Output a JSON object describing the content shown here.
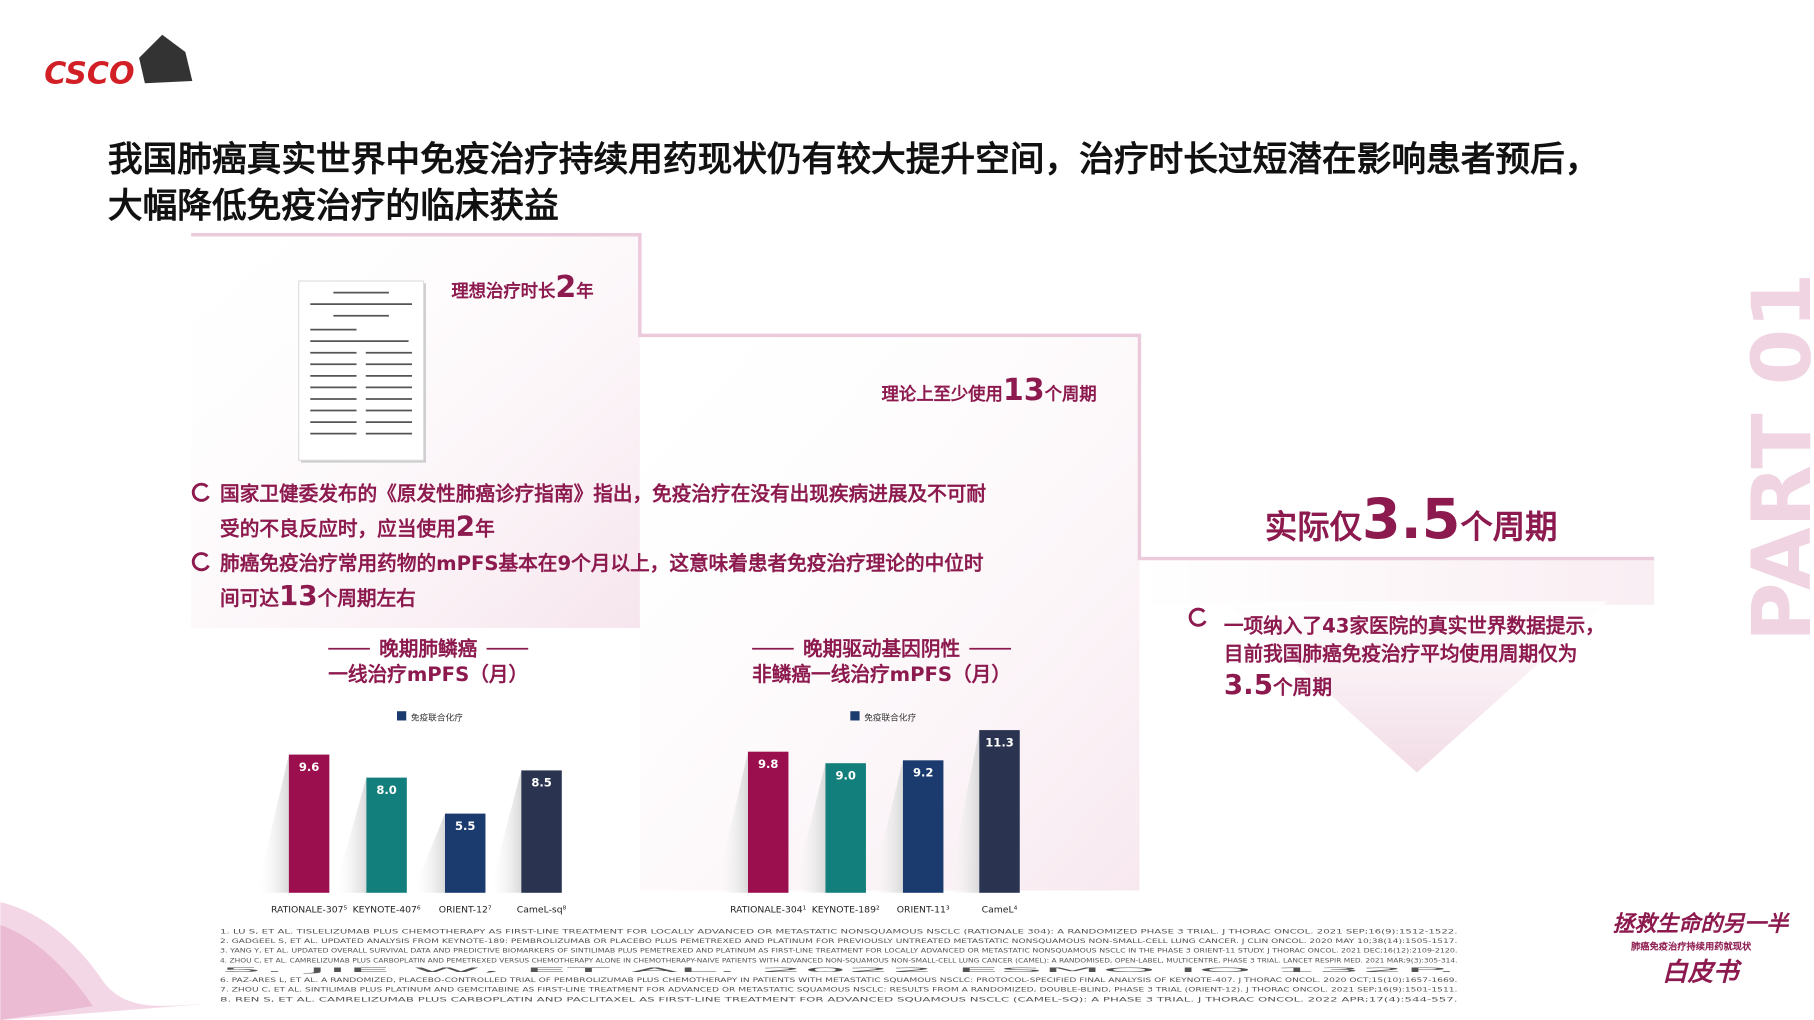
{
  "logo": "CSCO",
  "title": [
    "我国肺癌真实世界中免疫治疗持续用药现状仍有较大提升空间，治疗时长过短潜在影响患者预后，",
    "大幅降低免疫治疗的临床获益"
  ],
  "callout_ideal": {
    "text": "理想治疗时长",
    "number": "2",
    "unit": "年"
  },
  "callout_theory": {
    "text": "理论上至少使用",
    "number": "13",
    "unit": "个周期"
  },
  "bullets": [
    {
      "lines": [
        "国家卫健委发布的《原发性肺癌诊疗指南》指出，免疫治疗在没有出现疾病进展及不可耐",
        "受的不良反应时，应当使用"
      ],
      "number": "2",
      "unit": "年"
    },
    {
      "lines": [
        "肺癌免疫治疗常用药物的mPFS基本在9个月以上，这意味着患者免疫治疗理论的中位时",
        "间可达"
      ],
      "number": "13",
      "unit": "个周期左右"
    }
  ],
  "actual": {
    "text": "实际仅",
    "number": "3.5",
    "unit": "个周期"
  },
  "right_note": {
    "lines": [
      "一项纳入了43家医院的真实世界数据提示，",
      "目前我国肺癌免疫治疗平均使用周期仅为"
    ],
    "number": "3.5",
    "unit": "个周期"
  },
  "part": "PART 01",
  "chart_data": [
    {
      "type": "bar",
      "title": [
        "晚期肺鳞癌",
        "一线治疗mPFS（月）"
      ],
      "categories": [
        "RATIONALE-307⁵",
        "KEYNOTE-407⁶",
        "ORIENT-12⁷",
        "CameL-sq⁸"
      ],
      "series": [
        {
          "name": "免疫联合化疗",
          "values": [
            9.6,
            8,
            5.5,
            8.5
          ],
          "value_labels": [
            "9.6",
            "8.0",
            "5.5",
            "8.5"
          ]
        }
      ],
      "colors": [
        "#9b0f4f",
        "#137f7c",
        "#1b3a6e",
        "#2a3450"
      ],
      "ylim": [
        0,
        12
      ]
    },
    {
      "type": "bar",
      "title": [
        "晚期驱动基因阴性",
        "非鳞癌一线治疗mPFS（月）"
      ],
      "categories": [
        "RATIONALE-304¹",
        "KEYNOTE-189²",
        "ORIENT-11³",
        "CameL⁴"
      ],
      "series": [
        {
          "name": "免疫联合化疗",
          "values": [
            9.8,
            9,
            9.2,
            11.3
          ],
          "value_labels": [
            "9.8",
            "9.0",
            "9.2",
            "11.3"
          ]
        }
      ],
      "colors": [
        "#9b0f4f",
        "#137f7c",
        "#1b3a6e",
        "#2a3450"
      ],
      "ylim": [
        0,
        12
      ]
    }
  ],
  "references": [
    "1. LU S, ET AL. TISLELIZUMAB PLUS CHEMOTHERAPY AS FIRST-LINE TREATMENT FOR LOCALLY ADVANCED OR METASTATIC NONSQUAMOUS NSCLC (RATIONALE 304): A RANDOMIZED PHASE 3 TRIAL. J THORAC ONCOL. 2021 SEP;16(9):1512-1522.",
    "2. GADGEEL S, ET AL. UPDATED ANALYSIS FROM KEYNOTE-189: PEMBROLIZUMAB OR PLACEBO PLUS PEMETREXED AND PLATINUM FOR PREVIOUSLY UNTREATED METASTATIC NONSQUAMOUS NON-SMALL-CELL LUNG CANCER. J CLIN ONCOL. 2020 MAY 10;38(14):1505-1517.",
    "3. YANG Y, ET AL. UPDATED OVERALL SURVIVAL DATA AND PREDICTIVE BIOMARKERS OF SINTILIMAB PLUS PEMETREXED AND PLATINUM AS FIRST-LINE TREATMENT FOR LOCALLY ADVANCED OR METASTATIC NONSQUAMOUS NSCLC IN THE PHASE 3 ORIENT-11 STUDY. J THORAC ONCOL. 2021 DEC;16(12):2109-2120.",
    "4. ZHOU C, ET AL. CAMRELIZUMAB PLUS CARBOPLATIN AND PEMETREXED VERSUS CHEMOTHERAPY ALONE IN CHEMOTHERAPY-NAIVE PATIENTS WITH ADVANCED NON-SQUAMOUS NON-SMALL-CELL LUNG CANCER (CAMEL): A RANDOMISED, OPEN-LABEL, MULTICENTRE, PHASE 3 TRIAL. LANCET RESPIR MED. 2021 MAR;9(3):305-314.",
    "5. JIE W, ET AL. 2022 ESMO IO 132P.",
    "6. PAZ-ARES L, ET AL. A RANDOMIZED, PLACEBO-CONTROLLED TRIAL OF PEMBROLIZUMAB PLUS CHEMOTHERAPY IN PATIENTS WITH METASTATIC SQUAMOUS NSCLC: PROTOCOL-SPECIFIED FINAL ANALYSIS OF KEYNOTE-407. J THORAC ONCOL. 2020 OCT;15(10):1657-1669.",
    "7. ZHOU C, ET AL. SINTILIMAB PLUS PLATINUM AND GEMCITABINE AS FIRST-LINE TREATMENT FOR ADVANCED OR METASTATIC SQUAMOUS NSCLC: RESULTS FROM A RANDOMIZED, DOUBLE-BLIND, PHASE 3 TRIAL (ORIENT-12). J THORAC ONCOL. 2021 SEP;16(9):1501-1511.",
    "8. REN S, ET AL. CAMRELIZUMAB PLUS CARBOPLATIN AND PACLITAXEL AS FIRST-LINE TREATMENT FOR ADVANCED SQUAMOUS NSCLC (CAMEL-SQ): A PHASE 3 TRIAL. J THORAC ONCOL. 2022 APR;17(4):544-557."
  ],
  "badge": [
    "拯救生命的另一半",
    "肺癌免疫治疗持续用药就现状",
    "白皮书"
  ]
}
